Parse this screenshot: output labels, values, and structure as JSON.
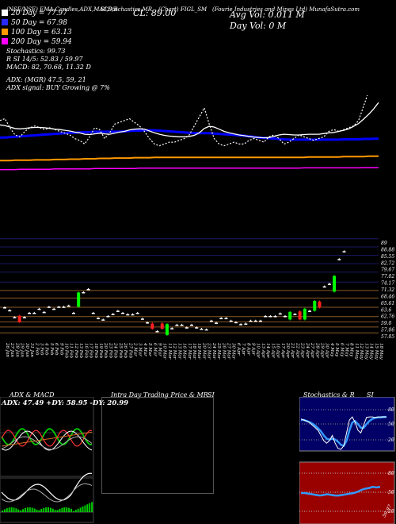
{
  "header": {
    "meta": "(NSE/NSE) EMA,Candles,ADX,MACD,R",
    "meta2": "SI,Stochastics,MR",
    "meta3": "(Chart) FIGL_SM",
    "meta4": "(Fourie Industries and Mines Ltd) MunafaSutra.com",
    "close": "CL: 89.00",
    "avg_vol": "Avg Vol: 0.011 M",
    "day_vol": "Day Vol: 0  M"
  },
  "legend": [
    {
      "label": "20  Day = 77.97",
      "color": "#ffffff"
    },
    {
      "label": "50  Day = 67.98",
      "color": "#0000ff"
    },
    {
      "label": "100  Day = 63.13",
      "color": "#ff9900"
    },
    {
      "label": "200  Day = 59.94",
      "color": "#ff00ff"
    }
  ],
  "indicators": {
    "stoch": "Stochastics: 99.73",
    "rsi": "R                  SI 14/5: 52.83 / 59.97",
    "macd": "MACD: 82, 70.68,  11.32  D",
    "adx": "ADX:                                    (MGR) 47.5,  59,  21",
    "adx_signal": "ADX  signal:                                             BUY Growing @ 7%"
  },
  "price_labels": [
    "89",
    "88.88",
    "85.55",
    "82.72",
    "79.67",
    "77.02",
    "74.17",
    "71.32",
    "68.46",
    "65.61",
    "63.6",
    "62.76",
    "59.0",
    "57.06",
    "57.05"
  ],
  "date_labels": [
    "26 Jan",
    "27 Jan",
    "28 Jan",
    "29 Jan",
    "30 Jan",
    "31 Jan",
    "2 Feb",
    "3 Feb",
    "4 Feb",
    "5 Feb",
    "6 Feb",
    "9 Feb",
    "10 Feb",
    "11 Feb",
    "12 Feb",
    "13 Feb",
    "16 Feb",
    "17 Feb",
    "18 Feb",
    "19 Feb",
    "20 Feb",
    "23 Feb",
    "24 Feb",
    "25 Feb",
    "26 Feb",
    "27 Feb",
    "2 Mar",
    "3 Mar",
    "4 Mar",
    "5 Mar",
    "6 Mar",
    "9 Mar",
    "10 Mar",
    "11 Mar",
    "12 Mar",
    "13 Mar",
    "16 Mar",
    "17 Mar",
    "18 Mar",
    "19 Mar",
    "20 Mar",
    "23 Mar",
    "24 Mar",
    "25 Mar",
    "26 Mar",
    "27 Mar",
    "30 Mar",
    "6 Apr",
    "7 Apr",
    "8 Apr",
    "9 Apr",
    "10 Apr",
    "13 Apr",
    "14 Apr",
    "15 Apr",
    "16 Apr",
    "17 Apr",
    "20 Apr",
    "21 Apr",
    "22 Apr",
    "23 Apr",
    "24 Apr",
    "27 Apr",
    "28 Apr",
    "29 Apr",
    "30 Apr",
    "4 May",
    "5 May",
    "6 May",
    "7 May",
    "8 May",
    "11 May",
    "12 May",
    "13 May",
    "14 May",
    "15 May",
    "18 May"
  ],
  "panels": {
    "adx_title": "ADX  & MACD",
    "adx_values": "ADX: 47.49  +DY: 58.95  -DY: 20.99",
    "intraday_title": "Intra  Day Trading Price  & MR",
    "si_title": "SI",
    "stoch_title": "Stochastics & R",
    "stoch_si": "SI",
    "stoch_levels": [
      "80",
      "50",
      "20"
    ],
    "rsi_levels": [
      "80",
      "50",
      "20"
    ],
    "rsi_value": "59.97"
  },
  "chart_data": [
    {
      "type": "line",
      "title": "EMA",
      "series": [
        {
          "name": "20  Day = 77.97",
          "color": "#ffffff",
          "values": [
            71.8,
            71.6,
            71.2,
            70.8,
            70.7,
            70.8,
            71.0,
            71.1,
            71.1,
            71.0,
            70.8,
            70.6,
            70.5,
            70.3,
            70.1,
            69.8,
            69.6,
            69.2,
            69.1,
            69.3,
            69.5,
            69.3,
            69.2,
            69.5,
            69.8,
            70.0,
            70.4,
            70.6,
            70.7,
            70.6,
            70.1,
            69.6,
            69.2,
            68.9,
            68.7,
            68.6,
            68.5,
            68.5,
            68.6,
            68.9,
            69.6,
            70.8,
            71.4,
            71.2,
            70.6,
            70.0,
            69.6,
            69.3,
            69.0,
            68.8,
            68.6,
            68.4,
            68.3,
            68.2,
            68.3,
            68.6,
            69.0,
            69.2,
            69.1,
            69.0,
            69.0,
            69.1,
            69.2,
            69.2,
            69.2,
            69.4,
            69.6,
            69.7,
            70.0,
            70.3,
            70.7,
            71.4,
            72.2,
            73.4,
            74.7,
            76.2,
            77.97
          ]
        },
        {
          "name": "50  Day = 67.98",
          "color": "#0000ff",
          "values": [
            68.3,
            68.3,
            68.4,
            68.5,
            68.6,
            68.7,
            68.8,
            68.9,
            69.0,
            69.1,
            69.2,
            69.3,
            69.4,
            69.5,
            69.6,
            69.6,
            69.7,
            69.8,
            69.8,
            69.9,
            69.9,
            69.9,
            69.9,
            69.9,
            69.9,
            70.0,
            70.1,
            70.2,
            70.2,
            70.3,
            70.3,
            70.3,
            70.2,
            70.1,
            70.0,
            69.9,
            69.8,
            69.7,
            69.6,
            69.5,
            69.5,
            69.5,
            69.5,
            69.4,
            69.3,
            69.2,
            69.1,
            69.0,
            68.9,
            68.8,
            68.6,
            68.5,
            68.3,
            68.2,
            68.1,
            68.0,
            67.9,
            67.8,
            67.7,
            67.7,
            67.7,
            67.7,
            67.7,
            67.7,
            67.7,
            67.7,
            67.7,
            67.7,
            67.7,
            67.8,
            67.8,
            67.8,
            67.8,
            67.9,
            67.9,
            67.95,
            67.98
          ]
        },
        {
          "name": "100  Day = 63.13",
          "color": "#ff9900",
          "values": [
            61.9,
            61.9,
            61.9,
            62.0,
            62.0,
            62.0,
            62.0,
            62.1,
            62.1,
            62.1,
            62.1,
            62.2,
            62.2,
            62.2,
            62.3,
            62.3,
            62.3,
            62.4,
            62.4,
            62.4,
            62.5,
            62.5,
            62.5,
            62.6,
            62.6,
            62.6,
            62.6,
            62.7,
            62.7,
            62.7,
            62.7,
            62.8,
            62.8,
            62.8,
            62.8,
            62.8,
            62.8,
            62.8,
            62.8,
            62.8,
            62.8,
            62.8,
            62.8,
            62.8,
            62.8,
            62.8,
            62.8,
            62.8,
            62.8,
            62.8,
            62.8,
            62.8,
            62.8,
            62.8,
            62.8,
            62.8,
            62.8,
            62.8,
            62.8,
            62.8,
            62.8,
            62.8,
            62.9,
            62.9,
            62.9,
            62.9,
            62.9,
            62.9,
            62.9,
            63.0,
            63.0,
            63.0,
            63.0,
            63.0,
            63.1,
            63.1,
            63.13
          ]
        },
        {
          "name": "200  Day = 59.94",
          "color": "#ff00ff",
          "values": [
            59.4,
            59.4,
            59.4,
            59.4,
            59.5,
            59.5,
            59.5,
            59.5,
            59.5,
            59.5,
            59.5,
            59.6,
            59.6,
            59.6,
            59.6,
            59.6,
            59.6,
            59.6,
            59.6,
            59.7,
            59.7,
            59.7,
            59.7,
            59.7,
            59.7,
            59.7,
            59.7,
            59.7,
            59.8,
            59.8,
            59.8,
            59.8,
            59.8,
            59.8,
            59.8,
            59.8,
            59.8,
            59.8,
            59.8,
            59.8,
            59.8,
            59.8,
            59.8,
            59.8,
            59.8,
            59.8,
            59.8,
            59.8,
            59.8,
            59.8,
            59.8,
            59.8,
            59.8,
            59.8,
            59.8,
            59.8,
            59.8,
            59.8,
            59.8,
            59.8,
            59.8,
            59.9,
            59.9,
            59.9,
            59.9,
            59.9,
            59.9,
            59.9,
            59.9,
            59.9,
            59.9,
            59.9,
            59.9,
            59.94,
            59.94,
            59.94,
            59.94
          ]
        },
        {
          "name": "price",
          "color": "#ffffff",
          "values": [
            73.0,
            73.5,
            71.0,
            69.0,
            68.5,
            70.0,
            71.0,
            71.5,
            71.0,
            70.5,
            71.0,
            70.5,
            70.0,
            69.5,
            69.0,
            68.0,
            67.5,
            66.5,
            68.5,
            71.0,
            70.5,
            68.0,
            69.5,
            72.0,
            72.5,
            73.0,
            73.5,
            72.5,
            71.5,
            70.0,
            68.0,
            66.5,
            66.0,
            66.5,
            67.0,
            67.0,
            67.5,
            68.0,
            69.0,
            71.5,
            74.0,
            76.5,
            72.0,
            68.0,
            66.5,
            66.0,
            66.5,
            67.0,
            66.5,
            66.5,
            67.5,
            68.0,
            67.5,
            67.0,
            68.5,
            69.0,
            68.0,
            66.5,
            67.0,
            68.0,
            69.0,
            68.5,
            68.0,
            67.5,
            68.0,
            68.5,
            70.0,
            70.5,
            70.0,
            70.5,
            71.0,
            71.5,
            73.0,
            77.0,
            81.0,
            85.0,
            89.0
          ]
        }
      ]
    },
    {
      "type": "bar",
      "title": "Candles",
      "ylim": [
        55,
        90
      ],
      "candles": [
        {
          "o": 66.2,
          "c": 66.2,
          "h": 66.5,
          "l": 66.0
        },
        {
          "o": 65.2,
          "c": 65.2,
          "h": 65.5,
          "l": 65.0
        },
        {
          "o": 62.8,
          "c": 62.8,
          "h": 63.1,
          "l": 62.5
        },
        {
          "o": 63.3,
          "c": 61.0,
          "h": 63.6,
          "l": 60.8
        },
        {
          "o": 62.8,
          "c": 62.8,
          "h": 63.1,
          "l": 62.5
        },
        {
          "o": 64.3,
          "c": 64.3,
          "h": 64.6,
          "l": 64.0
        },
        {
          "o": 64.3,
          "c": 64.3,
          "h": 64.6,
          "l": 64.0
        },
        {
          "o": 65.7,
          "c": 65.7,
          "h": 66.0,
          "l": 65.4
        },
        {
          "o": 64.6,
          "c": 64.6,
          "h": 64.9,
          "l": 64.3
        },
        {
          "o": 66.4,
          "c": 66.4,
          "h": 66.7,
          "l": 66.1
        },
        {
          "o": 65.7,
          "c": 65.7,
          "h": 66.0,
          "l": 65.4
        },
        {
          "o": 66.4,
          "c": 66.4,
          "h": 66.7,
          "l": 66.1
        },
        {
          "o": 66.4,
          "c": 66.4,
          "h": 66.7,
          "l": 66.1
        },
        {
          "o": 66.8,
          "c": 66.8,
          "h": 67.1,
          "l": 66.5
        },
        {
          "o": 64.3,
          "c": 64.3,
          "h": 64.6,
          "l": 64.0
        },
        {
          "o": 66.4,
          "c": 71.3,
          "h": 71.6,
          "l": 66.1
        },
        {
          "o": 71.4,
          "c": 71.4,
          "h": 71.7,
          "l": 71.1
        },
        {
          "o": 72.5,
          "c": 72.5,
          "h": 72.8,
          "l": 72.2
        },
        {
          "o": 64.3,
          "c": 64.3,
          "h": 64.6,
          "l": 64.0
        },
        {
          "o": 62.5,
          "c": 62.5,
          "h": 62.8,
          "l": 62.2
        },
        {
          "o": 62.0,
          "c": 62.0,
          "h": 62.3,
          "l": 61.7
        },
        {
          "o": 63.2,
          "c": 63.2,
          "h": 63.5,
          "l": 62.9
        },
        {
          "o": 63.9,
          "c": 63.9,
          "h": 64.2,
          "l": 63.6
        },
        {
          "o": 65.0,
          "c": 65.0,
          "h": 65.3,
          "l": 64.7
        },
        {
          "o": 64.3,
          "c": 64.3,
          "h": 64.6,
          "l": 64.0
        },
        {
          "o": 63.8,
          "c": 63.8,
          "h": 64.1,
          "l": 63.5
        },
        {
          "o": 63.8,
          "c": 63.8,
          "h": 64.1,
          "l": 63.5
        },
        {
          "o": 64.3,
          "c": 64.3,
          "h": 64.6,
          "l": 64.0
        },
        {
          "o": 62.3,
          "c": 62.3,
          "h": 62.6,
          "l": 62.0
        },
        {
          "o": 61.0,
          "c": 61.0,
          "h": 61.3,
          "l": 60.7
        },
        {
          "o": 60.6,
          "c": 58.8,
          "h": 61.0,
          "l": 58.5
        },
        {
          "o": 58.0,
          "c": 58.0,
          "h": 58.3,
          "l": 57.7
        },
        {
          "o": 60.6,
          "c": 58.8,
          "h": 61.0,
          "l": 58.5
        },
        {
          "o": 56.7,
          "c": 60.4,
          "h": 60.7,
          "l": 56.4
        },
        {
          "o": 59.0,
          "c": 59.0,
          "h": 59.3,
          "l": 58.7
        },
        {
          "o": 60.2,
          "c": 60.2,
          "h": 60.5,
          "l": 59.9
        },
        {
          "o": 60.2,
          "c": 60.2,
          "h": 60.5,
          "l": 59.9
        },
        {
          "o": 59.3,
          "c": 59.3,
          "h": 59.6,
          "l": 59.0
        },
        {
          "o": 60.2,
          "c": 60.2,
          "h": 60.5,
          "l": 59.9
        },
        {
          "o": 59.3,
          "c": 59.3,
          "h": 59.6,
          "l": 59.0
        },
        {
          "o": 58.8,
          "c": 58.8,
          "h": 59.1,
          "l": 58.5
        },
        {
          "o": 58.6,
          "c": 58.6,
          "h": 58.9,
          "l": 58.3
        },
        {
          "o": 61.6,
          "c": 61.6,
          "h": 61.9,
          "l": 61.3
        },
        {
          "o": 60.9,
          "c": 60.9,
          "h": 61.2,
          "l": 60.6
        },
        {
          "o": 62.5,
          "c": 62.5,
          "h": 62.8,
          "l": 62.2
        },
        {
          "o": 62.5,
          "c": 62.5,
          "h": 62.8,
          "l": 62.2
        },
        {
          "o": 61.6,
          "c": 61.6,
          "h": 61.9,
          "l": 61.3
        },
        {
          "o": 61.1,
          "c": 61.1,
          "h": 61.4,
          "l": 60.8
        },
        {
          "o": 60.4,
          "c": 60.4,
          "h": 60.7,
          "l": 60.1
        },
        {
          "o": 60.6,
          "c": 60.6,
          "h": 60.9,
          "l": 60.3
        },
        {
          "o": 61.6,
          "c": 61.6,
          "h": 61.9,
          "l": 61.3
        },
        {
          "o": 61.6,
          "c": 61.6,
          "h": 61.9,
          "l": 61.3
        },
        {
          "o": 61.6,
          "c": 61.6,
          "h": 61.9,
          "l": 61.3
        },
        {
          "o": 63.2,
          "c": 63.2,
          "h": 63.5,
          "l": 62.9
        },
        {
          "o": 63.2,
          "c": 63.2,
          "h": 63.5,
          "l": 62.9
        },
        {
          "o": 63.2,
          "c": 63.2,
          "h": 63.5,
          "l": 62.9
        },
        {
          "o": 64.1,
          "c": 64.1,
          "h": 64.4,
          "l": 63.8
        },
        {
          "o": 63.2,
          "c": 63.2,
          "h": 63.5,
          "l": 62.9
        },
        {
          "o": 62.0,
          "c": 64.6,
          "h": 64.9,
          "l": 61.7
        },
        {
          "o": 63.9,
          "c": 63.9,
          "h": 64.2,
          "l": 63.6
        },
        {
          "o": 64.8,
          "c": 62.0,
          "h": 65.1,
          "l": 61.7
        },
        {
          "o": 62.0,
          "c": 65.7,
          "h": 66.0,
          "l": 61.7
        },
        {
          "o": 65.0,
          "c": 65.0,
          "h": 65.3,
          "l": 64.7
        },
        {
          "o": 65.0,
          "c": 68.4,
          "h": 68.7,
          "l": 64.7
        },
        {
          "o": 68.2,
          "c": 66.1,
          "h": 68.5,
          "l": 65.8
        },
        {
          "o": 73.4,
          "c": 73.4,
          "h": 73.7,
          "l": 73.1
        },
        {
          "o": 74.3,
          "c": 74.3,
          "h": 74.6,
          "l": 74.0
        },
        {
          "o": 71.6,
          "c": 77.0,
          "h": 77.3,
          "l": 71.3
        },
        {
          "o": 82.8,
          "c": 82.8,
          "h": 83.1,
          "l": 82.5
        },
        {
          "o": 85.5,
          "c": 85.5,
          "h": 85.8,
          "l": 85.2
        }
      ]
    }
  ]
}
